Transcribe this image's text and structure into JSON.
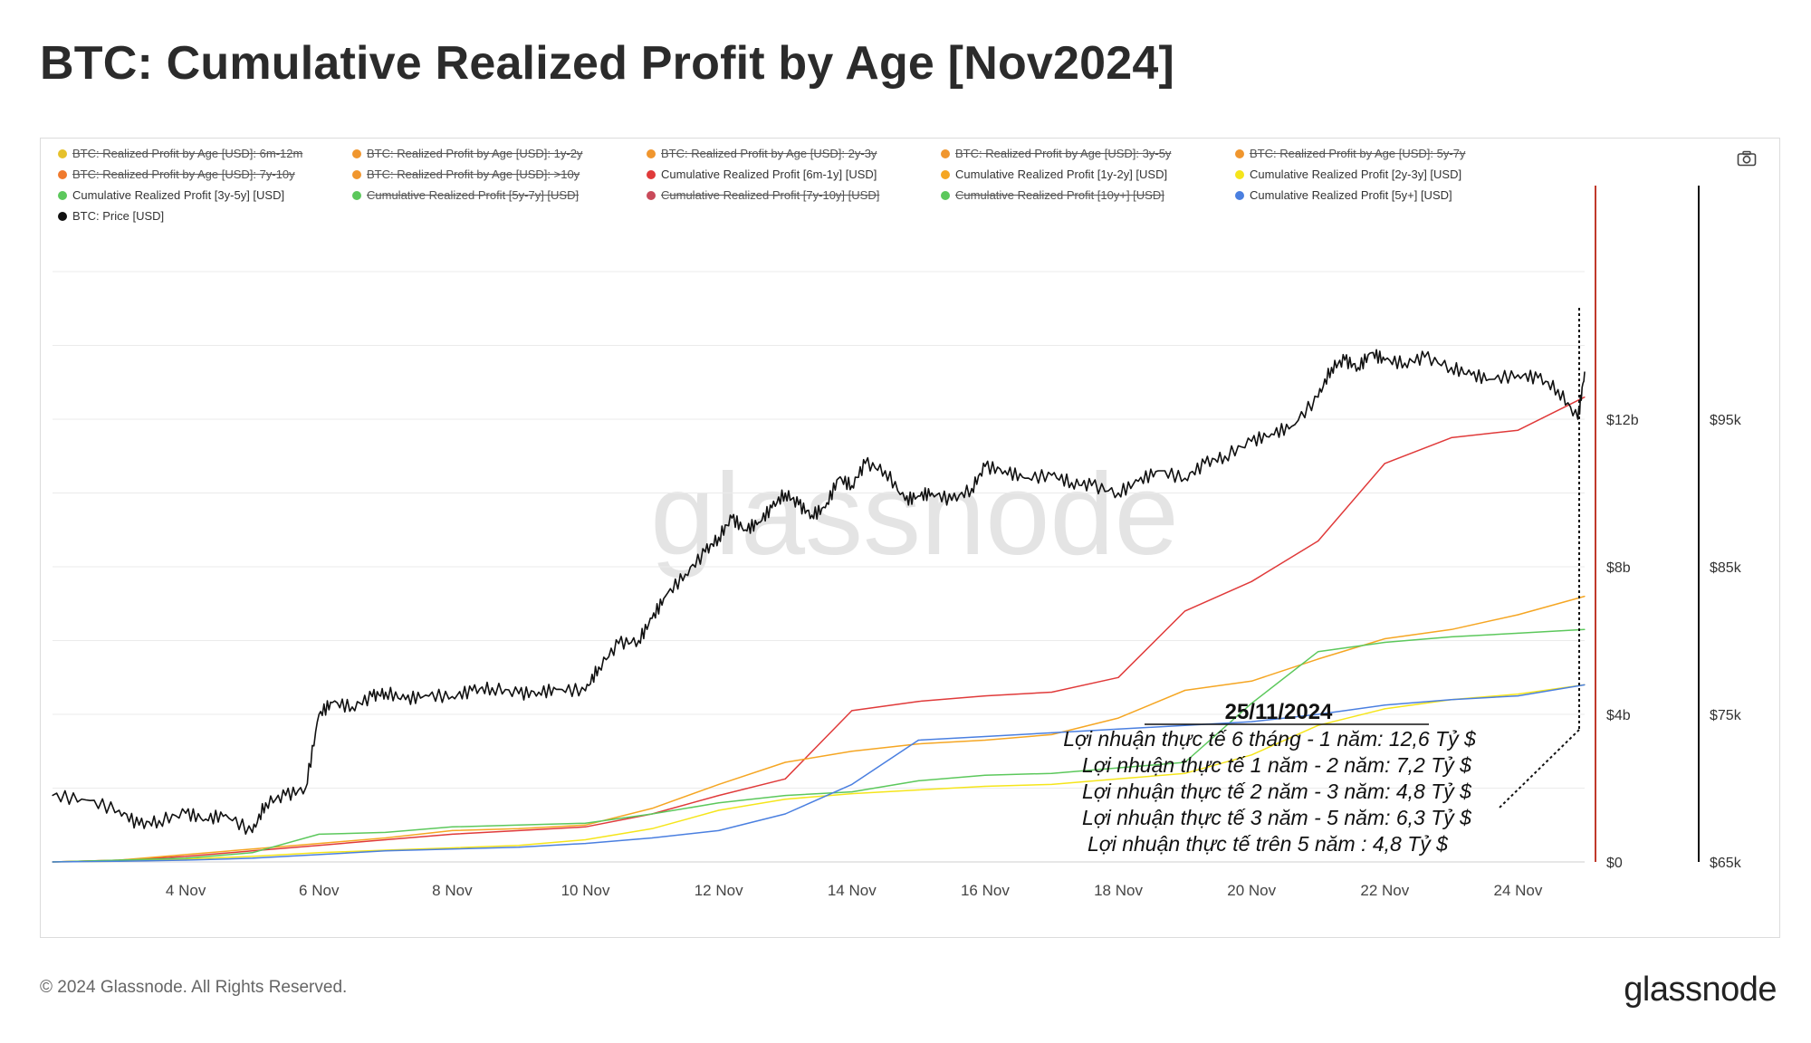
{
  "title": "BTC: Cumulative Realized Profit by Age [Nov2024]",
  "footer": "© 2024 Glassnode. All Rights Reserved.",
  "brand": "glassnode",
  "watermark": "glassnode",
  "legend": [
    {
      "label": "BTC: Realized Profit by Age [USD]: 6m-12m",
      "color": "#e6c12b",
      "off": true
    },
    {
      "label": "BTC: Realized Profit by Age [USD]: 1y-2y",
      "color": "#f0962e",
      "off": true
    },
    {
      "label": "BTC: Realized Profit by Age [USD]: 2y-3y",
      "color": "#f0962e",
      "off": true
    },
    {
      "label": "BTC: Realized Profit by Age [USD]: 3y-5y",
      "color": "#f0962e",
      "off": true
    },
    {
      "label": "BTC: Realized Profit by Age [USD]: 5y-7y",
      "color": "#f0962e",
      "off": true
    },
    {
      "label": "BTC: Realized Profit by Age [USD]: 7y-10y",
      "color": "#f07a2e",
      "off": true
    },
    {
      "label": "BTC: Realized Profit by Age [USD]: >10y",
      "color": "#f0962e",
      "off": true
    },
    {
      "label": "Cumulative Realized Profit [6m-1y] [USD]",
      "color": "#e03a3a",
      "off": false
    },
    {
      "label": "Cumulative Realized Profit [1y-2y] [USD]",
      "color": "#f5a623",
      "off": false
    },
    {
      "label": "Cumulative Realized Profit [2y-3y] [USD]",
      "color": "#f5e51b",
      "off": false
    },
    {
      "label": "Cumulative Realized Profit [3y-5y] [USD]",
      "color": "#5cc85c",
      "off": false
    },
    {
      "label": "Cumulative Realized Profit [5y-7y] [USD]",
      "color": "#5cc85c",
      "off": true
    },
    {
      "label": "Cumulative Realized Profit [7y-10y] [USD]",
      "color": "#c94a5a",
      "off": true
    },
    {
      "label": "Cumulative Realized Profit [10y+] [USD]",
      "color": "#5cc85c",
      "off": true
    },
    {
      "label": "Cumulative Realized Profit [5y+] [USD]",
      "color": "#4a7fe0",
      "off": false
    },
    {
      "label": "BTC: Price [USD]",
      "color": "#111111",
      "off": false
    }
  ],
  "annotation": {
    "date": "25/11/2024",
    "lines": [
      "Lợi nhuận thực tế 6 tháng - 1 năm: 12,6 Tỷ $",
      "Lợi nhuận thực tế 1 năm - 2 năm: 7,2 Tỷ $",
      "Lợi nhuận thực tế 2 năm - 3 năm: 4,8 Tỷ $",
      "Lợi nhuận thực tế 3 năm - 5 năm: 6,3 Tỷ $",
      "Lợi nhuận thực tế trên 5 năm : 4,8 Tỷ $"
    ]
  },
  "chart_data": {
    "type": "line",
    "x_ticks": [
      "4 Nov",
      "6 Nov",
      "8 Nov",
      "10 Nov",
      "12 Nov",
      "14 Nov",
      "16 Nov",
      "18 Nov",
      "20 Nov",
      "22 Nov",
      "24 Nov"
    ],
    "xlim": [
      2,
      25
    ],
    "left_axis": {
      "ticks": [
        "$0",
        "$4b",
        "$8b",
        "$12b"
      ],
      "values": [
        0,
        4,
        8,
        12
      ],
      "ylim": [
        0,
        16
      ],
      "unit": "billion USD"
    },
    "right_axis": {
      "ticks": [
        "$65k",
        "$75k",
        "$85k",
        "$95k"
      ],
      "values": [
        65,
        75,
        85,
        95
      ],
      "ylim": [
        65,
        105
      ],
      "unit": "thousand USD"
    },
    "colors": {
      "red": "#e03a3a",
      "orange": "#f5a623",
      "yellow": "#f5e51b",
      "green": "#5cc85c",
      "blue": "#4a7fe0",
      "price": "#111111",
      "marker": "#c0392b"
    },
    "series": [
      {
        "name": "Cumulative Realized Profit [6m-1y] [USD]",
        "color": "#e03a3a",
        "axis": "left",
        "x": [
          2,
          3,
          4,
          5,
          6,
          7,
          8,
          9,
          10,
          11,
          12,
          13,
          14,
          15,
          16,
          17,
          18,
          19,
          20,
          21,
          22,
          23,
          24,
          25
        ],
        "y": [
          0,
          0.05,
          0.15,
          0.3,
          0.45,
          0.6,
          0.75,
          0.85,
          0.95,
          1.3,
          1.8,
          2.25,
          4.1,
          4.35,
          4.5,
          4.6,
          5.0,
          6.8,
          7.6,
          8.7,
          10.8,
          11.5,
          11.7,
          12.6
        ]
      },
      {
        "name": "Cumulative Realized Profit [1y-2y] [USD]",
        "color": "#f5a623",
        "axis": "left",
        "x": [
          2,
          3,
          4,
          5,
          6,
          7,
          8,
          9,
          10,
          11,
          12,
          13,
          14,
          15,
          16,
          17,
          18,
          19,
          20,
          21,
          22,
          23,
          24,
          25
        ],
        "y": [
          0,
          0.05,
          0.2,
          0.35,
          0.5,
          0.65,
          0.85,
          0.9,
          1.0,
          1.45,
          2.1,
          2.7,
          3.0,
          3.2,
          3.3,
          3.45,
          3.9,
          4.65,
          4.9,
          5.5,
          6.05,
          6.3,
          6.7,
          7.2
        ]
      },
      {
        "name": "Cumulative Realized Profit [2y-3y] [USD]",
        "color": "#f5e51b",
        "axis": "left",
        "x": [
          2,
          3,
          4,
          5,
          6,
          7,
          8,
          9,
          10,
          11,
          12,
          13,
          14,
          15,
          16,
          17,
          18,
          19,
          20,
          21,
          22,
          23,
          24,
          25
        ],
        "y": [
          0,
          0.02,
          0.08,
          0.15,
          0.25,
          0.32,
          0.38,
          0.45,
          0.6,
          0.9,
          1.4,
          1.7,
          1.85,
          1.95,
          2.05,
          2.1,
          2.25,
          2.4,
          2.9,
          3.7,
          4.15,
          4.4,
          4.55,
          4.8
        ]
      },
      {
        "name": "Cumulative Realized Profit [3y-5y] [USD]",
        "color": "#5cc85c",
        "axis": "left",
        "x": [
          2,
          3,
          4,
          5,
          6,
          7,
          8,
          9,
          10,
          11,
          12,
          13,
          14,
          15,
          16,
          17,
          18,
          19,
          20,
          21,
          22,
          23,
          24,
          25
        ],
        "y": [
          0,
          0.05,
          0.1,
          0.25,
          0.75,
          0.8,
          0.95,
          1.0,
          1.05,
          1.3,
          1.6,
          1.8,
          1.9,
          2.2,
          2.35,
          2.4,
          2.55,
          2.7,
          4.3,
          5.7,
          5.95,
          6.1,
          6.2,
          6.3
        ]
      },
      {
        "name": "Cumulative Realized Profit [5y+] [USD]",
        "color": "#4a7fe0",
        "axis": "left",
        "x": [
          2,
          3,
          4,
          5,
          6,
          7,
          8,
          9,
          10,
          11,
          12,
          13,
          14,
          15,
          16,
          17,
          18,
          19,
          20,
          21,
          22,
          23,
          24,
          25
        ],
        "y": [
          0,
          0.02,
          0.05,
          0.1,
          0.2,
          0.3,
          0.35,
          0.4,
          0.5,
          0.65,
          0.85,
          1.3,
          2.1,
          3.3,
          3.4,
          3.5,
          3.6,
          3.7,
          3.8,
          4.0,
          4.25,
          4.4,
          4.5,
          4.8
        ]
      },
      {
        "name": "BTC: Price [USD]",
        "color": "#111111",
        "axis": "right",
        "x": [
          2,
          2.5,
          3,
          3.3,
          3.6,
          4,
          4.3,
          4.6,
          5,
          5.2,
          5.5,
          5.8,
          6,
          6.2,
          6.5,
          6.8,
          7,
          7.3,
          7.6,
          8,
          8.3,
          8.6,
          9,
          9.3,
          9.6,
          10,
          10.2,
          10.5,
          10.8,
          11,
          11.2,
          11.5,
          11.8,
          12,
          12.2,
          12.4,
          12.6,
          12.8,
          13,
          13.2,
          13.4,
          13.6,
          13.8,
          14,
          14.2,
          14.5,
          14.8,
          15,
          15.2,
          15.5,
          15.8,
          16,
          16.3,
          16.6,
          17,
          17.3,
          17.6,
          18,
          18.3,
          18.6,
          19,
          19.3,
          19.6,
          20,
          20.3,
          20.6,
          21,
          21.2,
          21.4,
          21.6,
          21.8,
          22,
          22.3,
          22.6,
          23,
          23.3,
          23.6,
          24,
          24.3,
          24.6,
          24.9,
          25
        ],
        "y": [
          69.5,
          69.2,
          68.5,
          67.5,
          67.8,
          68.3,
          67.9,
          68.2,
          67,
          69,
          69.5,
          70,
          75,
          75.8,
          75.5,
          76.2,
          76.5,
          76,
          76.3,
          76.2,
          76.6,
          76.8,
          76.4,
          76.5,
          76.7,
          76.6,
          78.2,
          79.8,
          80,
          81.5,
          83,
          84.5,
          86,
          87,
          88.3,
          87.5,
          88,
          89,
          90,
          89.2,
          88.5,
          89,
          91,
          90.5,
          92,
          91.5,
          89.5,
          89.8,
          90,
          89.5,
          90.3,
          91.8,
          91.5,
          91,
          91.2,
          90.7,
          90.5,
          90,
          90.8,
          91.5,
          91,
          92,
          92.5,
          93.5,
          94,
          94.5,
          96.5,
          98.5,
          99,
          98.5,
          99.5,
          99,
          98.8,
          99.2,
          98.5,
          98,
          97.7,
          98,
          97.8,
          97,
          95,
          98.2
        ]
      }
    ]
  }
}
